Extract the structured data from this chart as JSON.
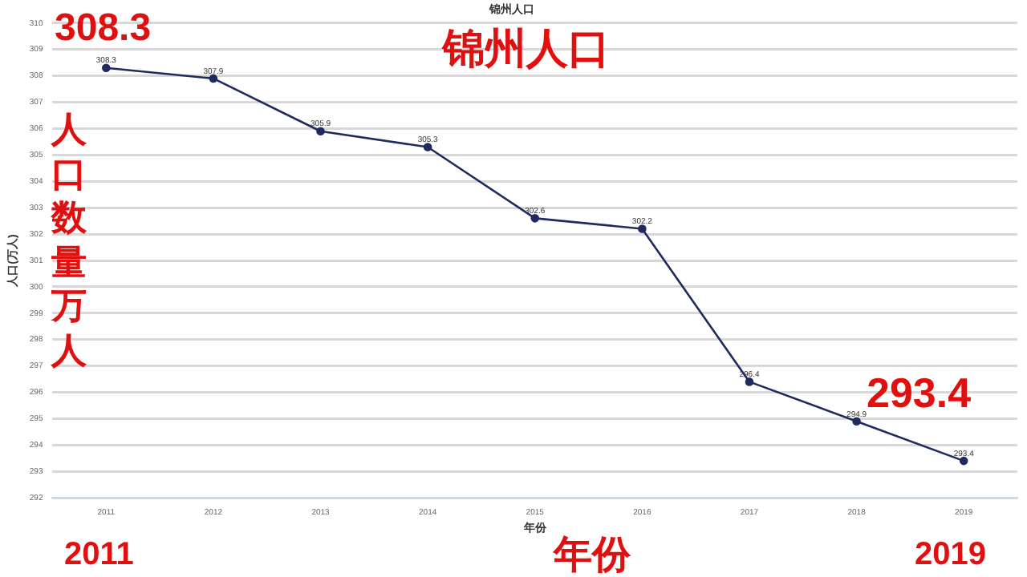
{
  "chart_data": {
    "type": "line",
    "title": "锦州人口",
    "xlabel": "年份",
    "ylabel": "人口(万人)",
    "categories": [
      "2011",
      "2012",
      "2013",
      "2014",
      "2015",
      "2016",
      "2017",
      "2018",
      "2019"
    ],
    "series": [
      {
        "color": "#1f2b5e",
        "values": [
          308.3,
          307.9,
          305.9,
          305.3,
          302.6,
          302.2,
          296.4,
          294.9,
          293.4
        ]
      }
    ],
    "ylim": [
      292,
      310
    ],
    "yticks": [
      292,
      293,
      294,
      295,
      296,
      297,
      298,
      299,
      300,
      301,
      302,
      303,
      304,
      305,
      306,
      307,
      308,
      309,
      310
    ],
    "grid": "y",
    "legend": false,
    "marker": "circle",
    "line_style": "solid",
    "data_labels": true,
    "annotations": [
      "308.3",
      "锦州人口",
      "人口数量万人",
      "293.4",
      "2011",
      "年份",
      "2019"
    ]
  }
}
